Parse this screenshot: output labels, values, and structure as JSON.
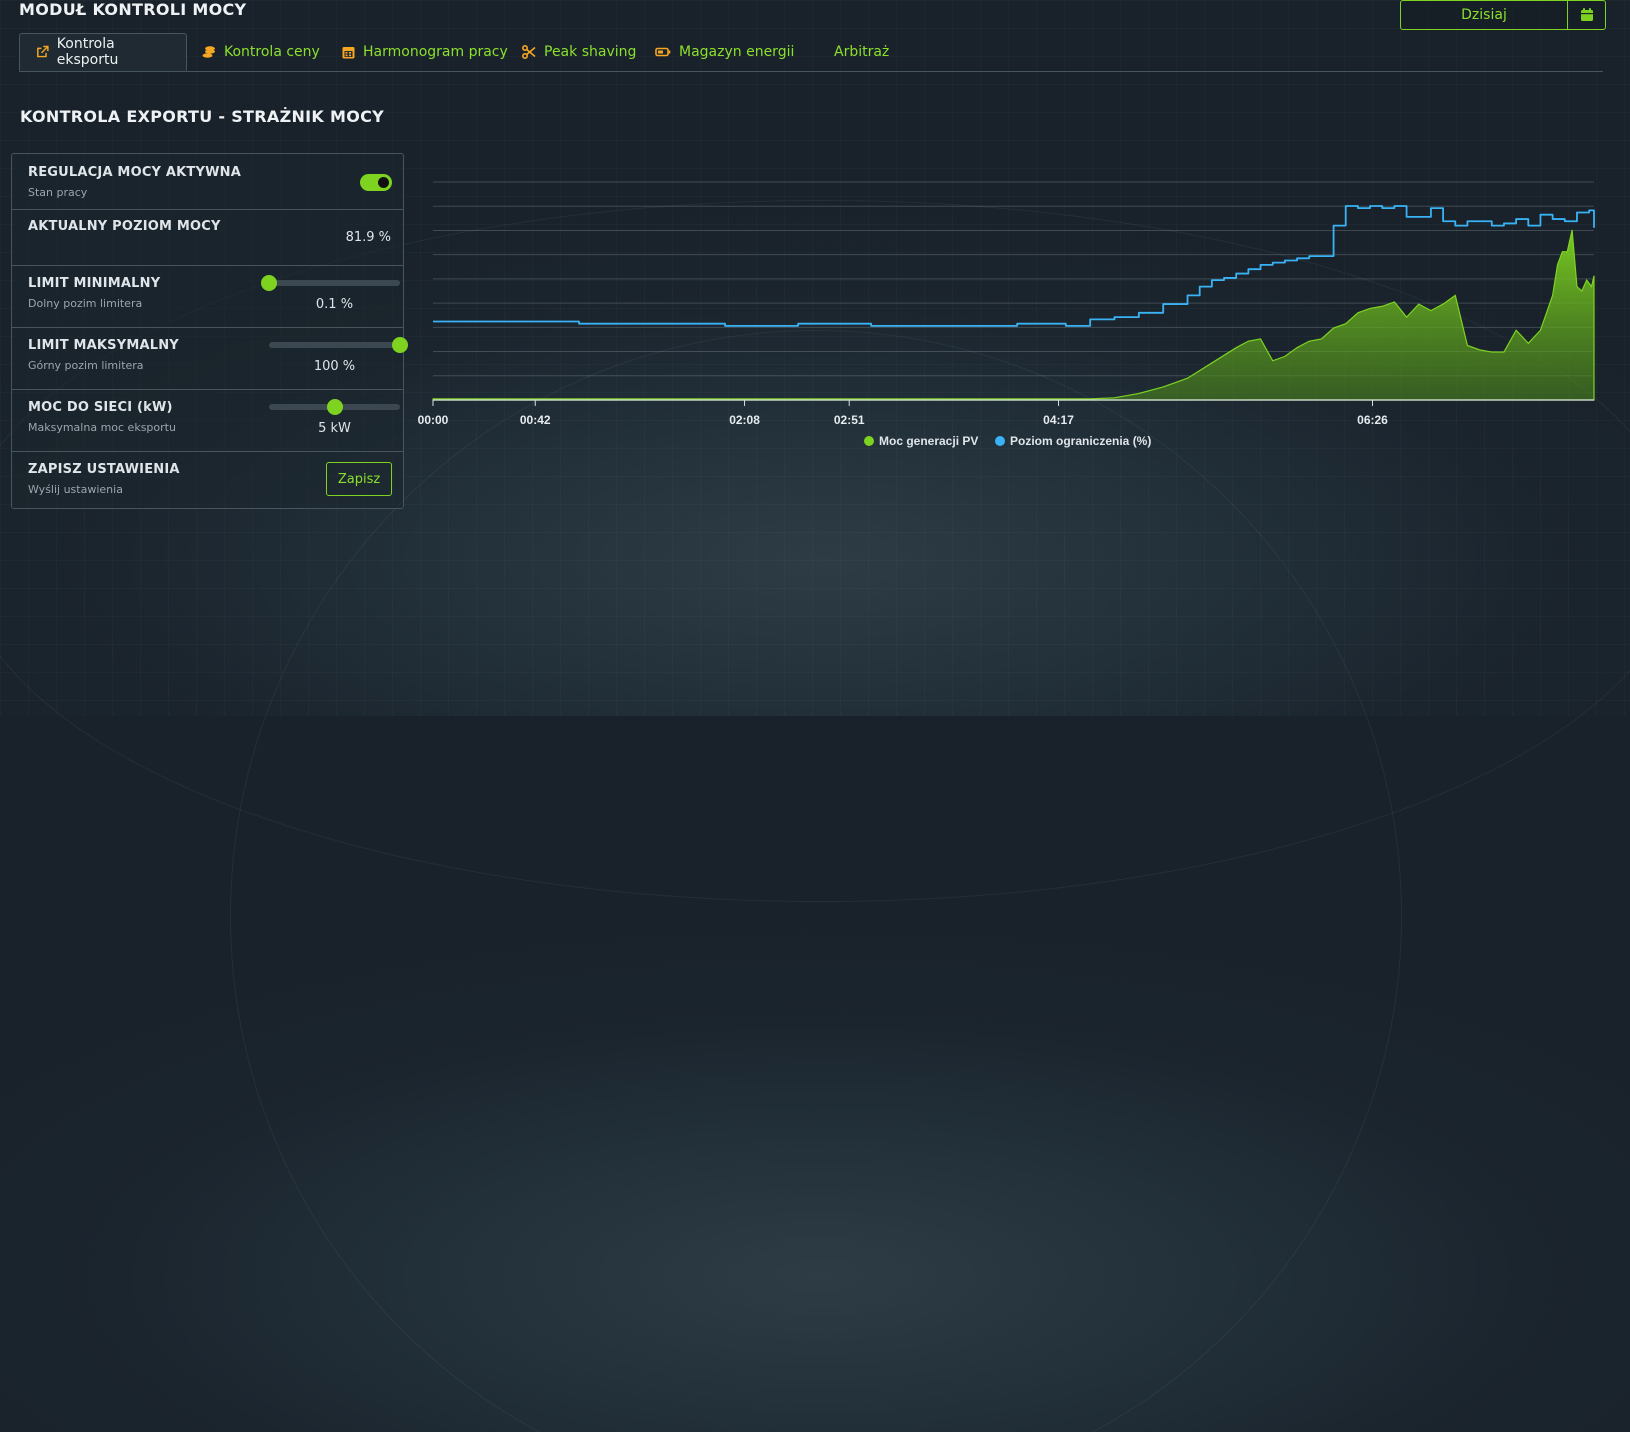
{
  "app": {
    "title": "MODUŁ KONTROLI MOCY",
    "date_button": "Dzisiaj"
  },
  "tabs": [
    {
      "label": "Kontrola eksportu",
      "icon": "external-link-icon",
      "active": true
    },
    {
      "label": "Kontrola ceny",
      "icon": "coins-icon"
    },
    {
      "label": "Harmonogram pracy",
      "icon": "calendar-icon"
    },
    {
      "label": "Peak shaving",
      "icon": "scissors-icon"
    },
    {
      "label": "Magazyn energii",
      "icon": "battery-icon"
    },
    {
      "label": "Arbitraż",
      "icon": ""
    }
  ],
  "section": {
    "title": "KONTROLA EXPORTU - STRAŻNIK MOCY"
  },
  "settings": {
    "regulation": {
      "title": "REGULACJA MOCY AKTYWNA",
      "subtitle": "Stan pracy",
      "enabled": true
    },
    "current_power": {
      "title": "AKTUALNY POZIOM MOCY",
      "value": "81.9 %"
    },
    "min_limit": {
      "title": "LIMIT MINIMALNY",
      "subtitle": "Dolny pozim limitera",
      "value": "0.1 %",
      "level": 0.001
    },
    "max_limit": {
      "title": "LIMIT MAKSYMALNY",
      "subtitle": "Górny pozim limitera",
      "value": "100 %",
      "level": 1.0
    },
    "grid_power": {
      "title": "MOC DO SIECI (kW)",
      "subtitle": "Maksymalna moc eksportu",
      "value": "5 kW",
      "level": 0.5
    },
    "save": {
      "title": "ZAPISZ USTAWIENIA",
      "subtitle": "Wyślij ustawienia",
      "button": "Zapisz"
    }
  },
  "colors": {
    "accent": "#7ed321",
    "pv_series": "#7ed321",
    "limit_series": "#39b3f5"
  },
  "chart_data": {
    "type": "line",
    "x_tick_labels": [
      "00:00",
      "00:42",
      "02:08",
      "02:51",
      "04:17",
      "06:26"
    ],
    "x_domain": [
      "00:00",
      "07:57"
    ],
    "y_range": [
      0,
      100
    ],
    "grid": true,
    "legend": "bottom",
    "series": [
      {
        "name": "Moc generacji PV",
        "style": "area",
        "x": [
          "00:00",
          "04:30",
          "04:40",
          "04:50",
          "05:00",
          "05:10",
          "05:20",
          "05:30",
          "05:35",
          "05:40",
          "05:45",
          "05:50",
          "05:55",
          "06:00",
          "06:05",
          "06:10",
          "06:15",
          "06:20",
          "06:25",
          "06:30",
          "06:35",
          "06:40",
          "06:45",
          "06:50",
          "06:55",
          "07:00",
          "07:05",
          "07:10",
          "07:15",
          "07:20",
          "07:25",
          "07:30",
          "07:35",
          "07:40",
          "07:42",
          "07:44",
          "07:46",
          "07:48",
          "07:50",
          "07:52",
          "07:54",
          "07:56",
          "07:57"
        ],
        "values": [
          0.5,
          0.5,
          1,
          3,
          6,
          10,
          17,
          24,
          27,
          28,
          18,
          20,
          24,
          27,
          28,
          33,
          35,
          40,
          42,
          43,
          45,
          38,
          44,
          41,
          44,
          48,
          25,
          23,
          22,
          22,
          32,
          26,
          32,
          48,
          62,
          68,
          68,
          78,
          52,
          50,
          55,
          52,
          57
        ]
      },
      {
        "name": "Poziom ograniczenia (%)",
        "style": "line",
        "x": [
          "00:00",
          "00:30",
          "01:00",
          "01:30",
          "02:00",
          "02:30",
          "03:00",
          "03:30",
          "04:00",
          "04:20",
          "04:30",
          "04:40",
          "04:50",
          "05:00",
          "05:10",
          "05:15",
          "05:20",
          "05:25",
          "05:30",
          "05:35",
          "05:40",
          "05:45",
          "05:50",
          "05:55",
          "06:00",
          "06:05",
          "06:10",
          "06:15",
          "06:20",
          "06:25",
          "06:30",
          "06:35",
          "06:40",
          "06:45",
          "06:50",
          "06:55",
          "07:00",
          "07:05",
          "07:10",
          "07:15",
          "07:20",
          "07:25",
          "07:30",
          "07:35",
          "07:40",
          "07:45",
          "07:50",
          "07:55",
          "07:57"
        ],
        "values": [
          36,
          36,
          35,
          35,
          34,
          35,
          34,
          34,
          35,
          34,
          37,
          38,
          40,
          44,
          48,
          52,
          55,
          56,
          58,
          60,
          62,
          63,
          64,
          65,
          66,
          66,
          80,
          89,
          88,
          89,
          88,
          89,
          84,
          84,
          88,
          82,
          80,
          82,
          82,
          80,
          81,
          83,
          80,
          85,
          83,
          82,
          86,
          87,
          79
        ]
      }
    ]
  }
}
